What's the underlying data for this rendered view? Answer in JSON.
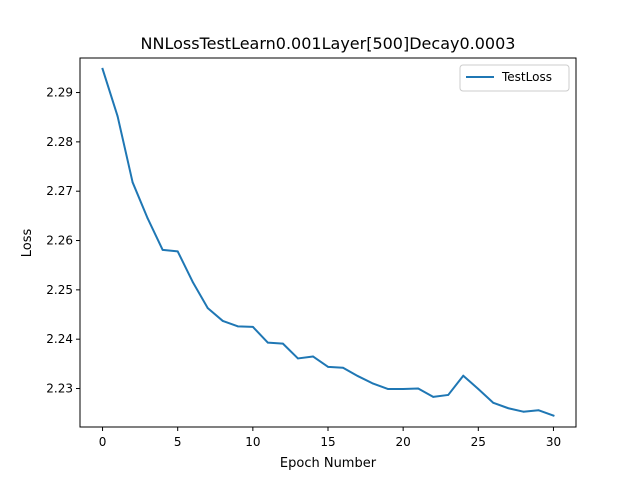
{
  "chart_data": {
    "type": "line",
    "title": "NNLossTestLearn0.001Layer[500]Decay0.0003",
    "xlabel": "Epoch Number",
    "ylabel": "Loss",
    "xlim": [
      -1.5,
      31.5
    ],
    "ylim": [
      2.2222,
      2.297
    ],
    "xticks": [
      0,
      5,
      10,
      15,
      20,
      25,
      30
    ],
    "xtick_labels": [
      "0",
      "5",
      "10",
      "15",
      "20",
      "25",
      "30"
    ],
    "yticks": [
      2.23,
      2.24,
      2.25,
      2.26,
      2.27,
      2.28,
      2.29
    ],
    "ytick_labels": [
      "2.23",
      "2.24",
      "2.25",
      "2.26",
      "2.27",
      "2.28",
      "2.29"
    ],
    "grid": false,
    "legend_position": "top-right",
    "series": [
      {
        "name": "TestLoss",
        "color": "#1f77b4",
        "x": [
          0,
          1,
          2,
          3,
          4,
          5,
          6,
          7,
          8,
          9,
          10,
          11,
          12,
          13,
          14,
          15,
          16,
          17,
          18,
          19,
          20,
          21,
          22,
          23,
          24,
          25,
          26,
          27,
          28,
          29,
          30
        ],
        "y": [
          2.2948,
          2.2852,
          2.2718,
          2.2645,
          2.2581,
          2.2578,
          2.2516,
          2.2463,
          2.2437,
          2.2426,
          2.2425,
          2.2393,
          2.2391,
          2.2361,
          2.2365,
          2.2344,
          2.2342,
          2.2325,
          2.231,
          2.2299,
          2.2299,
          2.23,
          2.2283,
          2.2287,
          2.2326,
          2.2299,
          2.2271,
          2.226,
          2.2253,
          2.2256,
          2.2245
        ]
      }
    ]
  }
}
